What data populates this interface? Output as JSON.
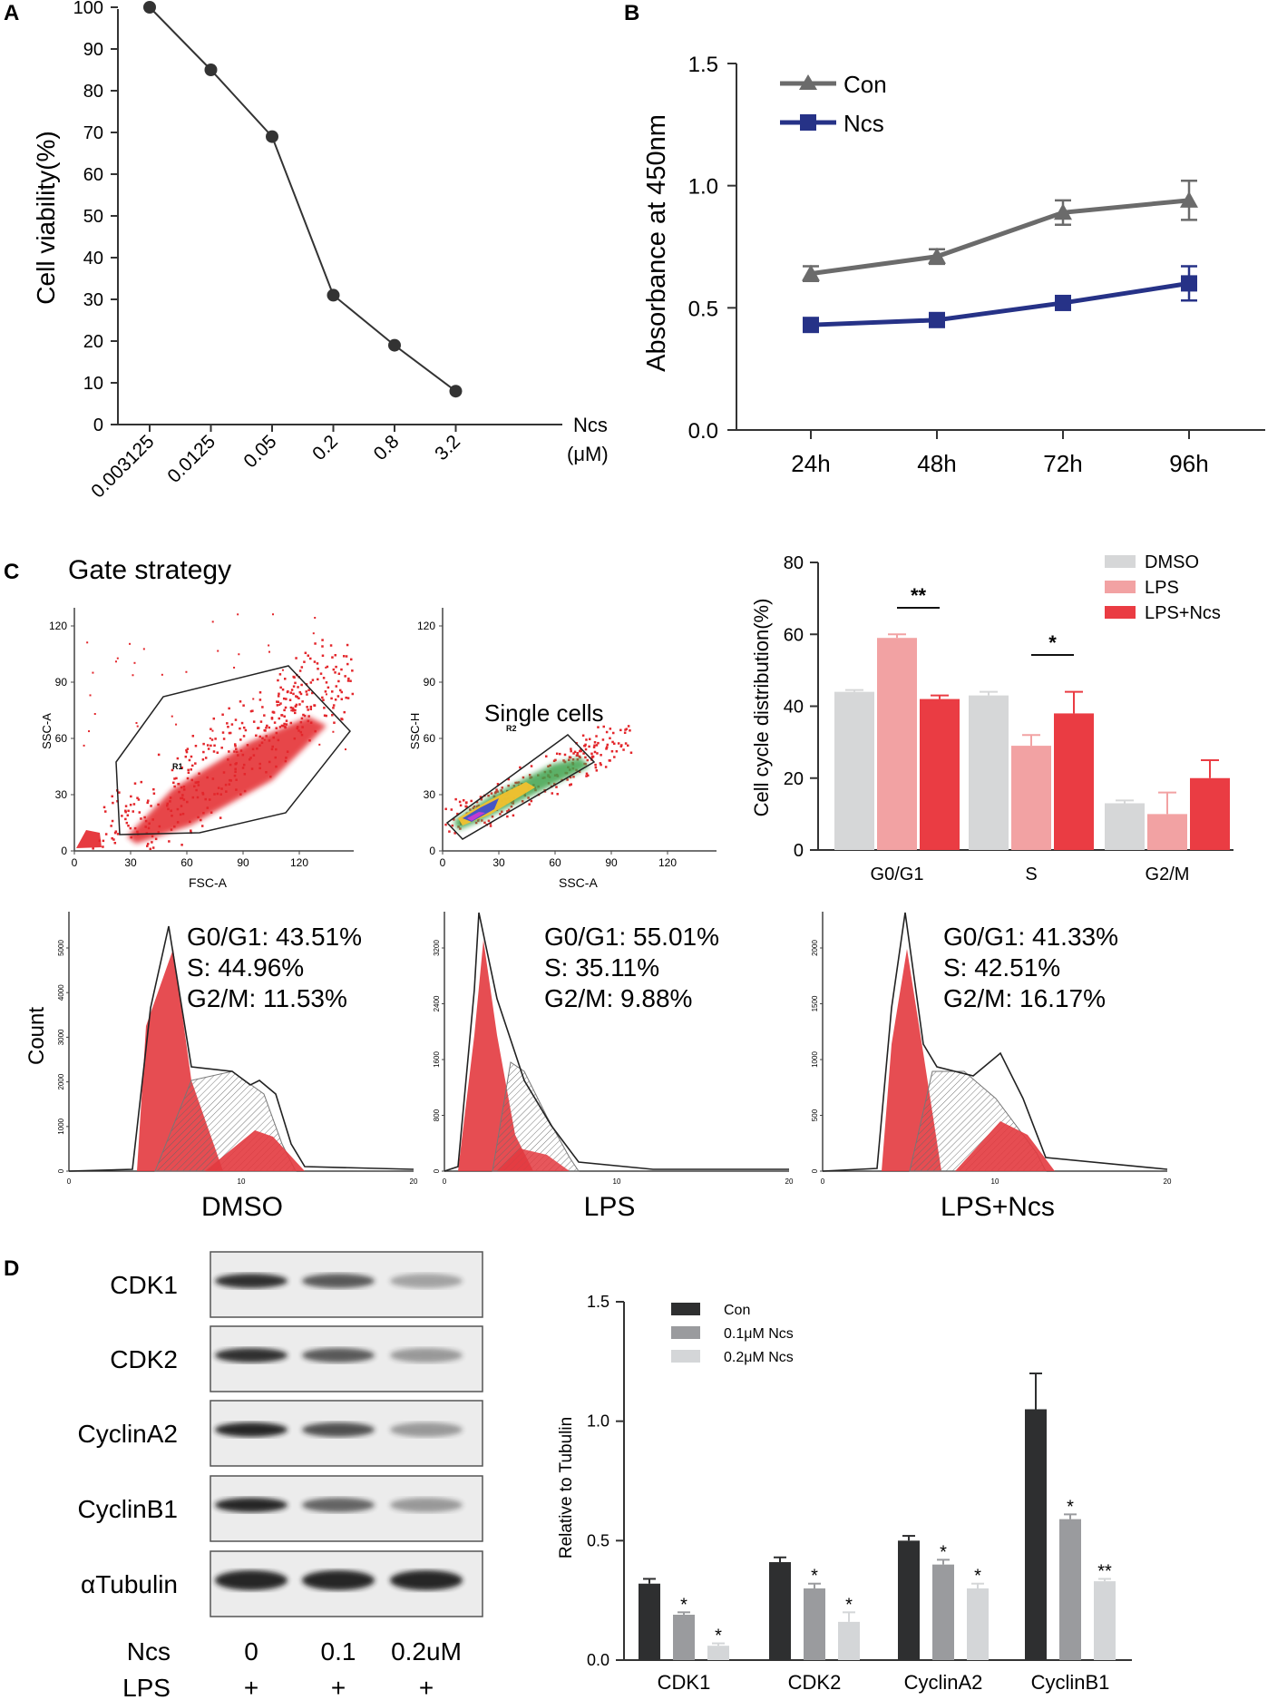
{
  "panel_labels": {
    "A": "A",
    "B": "B",
    "C": "C",
    "D": "D"
  },
  "colors": {
    "dmso": "#d6d7d8",
    "lps": "#f2a2a3",
    "lps_ncs": "#ea3c43",
    "con_b": "#6b6b6b",
    "ncs_b": "#263287",
    "con_d": "#2e2f30",
    "ncs01": "#9a9b9e",
    "ncs02": "#d4d6d8",
    "histo_red": "#e33a3f"
  },
  "chart_data": [
    {
      "id": "A",
      "type": "line",
      "categories": [
        "0.003125",
        "0.0125",
        "0.05",
        "0.2",
        "0.8",
        "3.2"
      ],
      "values": [
        100,
        85,
        69,
        31,
        19,
        8
      ],
      "ylabel": "Cell viability(%)",
      "xlabel_line1": "Ncs",
      "xlabel_line2": "(μM)",
      "ylim": [
        0,
        100
      ],
      "yticks": [
        "0",
        "10",
        "20",
        "30",
        "40",
        "50",
        "60",
        "70",
        "80",
        "90",
        "100"
      ]
    },
    {
      "id": "B",
      "type": "line",
      "categories": [
        "24h",
        "48h",
        "72h",
        "96h"
      ],
      "series": [
        {
          "name": "Con",
          "values": [
            0.64,
            0.71,
            0.89,
            0.94
          ],
          "errors": [
            0.03,
            0.03,
            0.05,
            0.08
          ]
        },
        {
          "name": "Ncs",
          "values": [
            0.43,
            0.45,
            0.52,
            0.6
          ],
          "errors": [
            0.01,
            0.01,
            0.02,
            0.07
          ]
        }
      ],
      "ylabel": "Absorbance at 450nm",
      "ylim": [
        0,
        1.5
      ],
      "yticks": [
        "0.0",
        "0.5",
        "1.0",
        "1.5"
      ]
    },
    {
      "id": "C",
      "type": "bar",
      "categories": [
        "G0/G1",
        "S",
        "G2/M"
      ],
      "series": [
        {
          "name": "DMSO",
          "values": [
            44,
            43,
            13
          ],
          "errors": [
            0.5,
            1,
            0.8
          ]
        },
        {
          "name": "LPS",
          "values": [
            59,
            29,
            10
          ],
          "errors": [
            1,
            3,
            6
          ]
        },
        {
          "name": "LPS+Ncs",
          "values": [
            42,
            38,
            20
          ],
          "errors": [
            1,
            6,
            5
          ]
        }
      ],
      "ylabel": "Cell cycle distribution(%)",
      "ylim": [
        0,
        80
      ],
      "yticks": [
        "0",
        "20",
        "40",
        "60",
        "80"
      ],
      "significance": [
        "**",
        "*"
      ]
    },
    {
      "id": "D",
      "type": "bar",
      "categories": [
        "CDK1",
        "CDK2",
        "CyclinA2",
        "CyclinB1"
      ],
      "series": [
        {
          "name": "Con",
          "values": [
            0.32,
            0.41,
            0.5,
            1.05
          ],
          "errors": [
            0.02,
            0.02,
            0.02,
            0.15
          ]
        },
        {
          "name": "0.1μM Ncs",
          "values": [
            0.19,
            0.3,
            0.4,
            0.59
          ],
          "errors": [
            0.01,
            0.02,
            0.02,
            0.02
          ]
        },
        {
          "name": "0.2μM Ncs",
          "values": [
            0.06,
            0.16,
            0.3,
            0.33
          ],
          "errors": [
            0.01,
            0.04,
            0.02,
            0.01
          ]
        }
      ],
      "stars": [
        [
          "*",
          "*"
        ],
        [
          "*",
          "*"
        ],
        [
          "*",
          "*"
        ],
        [
          "*",
          "**"
        ]
      ],
      "ylabel": "Relative to Tubulin",
      "ylim": [
        0,
        1.5
      ],
      "yticks": [
        "0.0",
        "0.5",
        "1.0",
        "1.5"
      ]
    }
  ],
  "gate": {
    "title": "Gate strategy",
    "plot1": {
      "xlabel": "FSC-A",
      "ylabel": "SSC-A",
      "gate_label": "R1",
      "xticks": [
        "0",
        "30",
        "60",
        "90",
        "120"
      ],
      "yticks": [
        "0",
        "30",
        "60",
        "90",
        "120"
      ]
    },
    "plot2": {
      "xlabel": "SSC-A",
      "ylabel": "SSC-H",
      "gate_label": "R2",
      "annotation": "Single cells",
      "xticks": [
        "0",
        "30",
        "60",
        "90",
        "120"
      ],
      "yticks": [
        "0",
        "30",
        "60",
        "90",
        "120"
      ]
    }
  },
  "histograms": {
    "ylabel": "Count",
    "xticks": [
      "0",
      "10",
      "20"
    ],
    "panels": [
      {
        "name": "DMSO",
        "g0g1": "G0/G1: 43.51%",
        "s": "S: 44.96%",
        "g2m": "G2/M: 11.53%",
        "yticks": [
          "0",
          "1000",
          "2000",
          "3000",
          "4000",
          "5000"
        ]
      },
      {
        "name": "LPS",
        "g0g1": "G0/G1: 55.01%",
        "s": "S: 35.11%",
        "g2m": "G2/M: 9.88%",
        "yticks": [
          "0",
          "800",
          "1600",
          "2400",
          "3200"
        ]
      },
      {
        "name": "LPS+Ncs",
        "g0g1": "G0/G1: 41.33%",
        "s": "S: 42.51%",
        "g2m": "G2/M: 16.17%",
        "yticks": [
          "0",
          "500",
          "1000",
          "1500",
          "2000"
        ]
      }
    ]
  },
  "western": {
    "rows": [
      "CDK1",
      "CDK2",
      "CyclinA2",
      "CyclinB1",
      "αTubulin"
    ],
    "intensities": [
      [
        0.9,
        0.7,
        0.35
      ],
      [
        0.9,
        0.7,
        0.4
      ],
      [
        0.95,
        0.75,
        0.4
      ],
      [
        0.95,
        0.65,
        0.4
      ],
      [
        0.95,
        0.95,
        0.95
      ]
    ],
    "ncs_label": "Ncs",
    "lps_label": "LPS",
    "ncs_values": [
      "0",
      "0.1",
      "0.2uM"
    ],
    "lps_values": [
      "+",
      "+",
      "+"
    ]
  }
}
